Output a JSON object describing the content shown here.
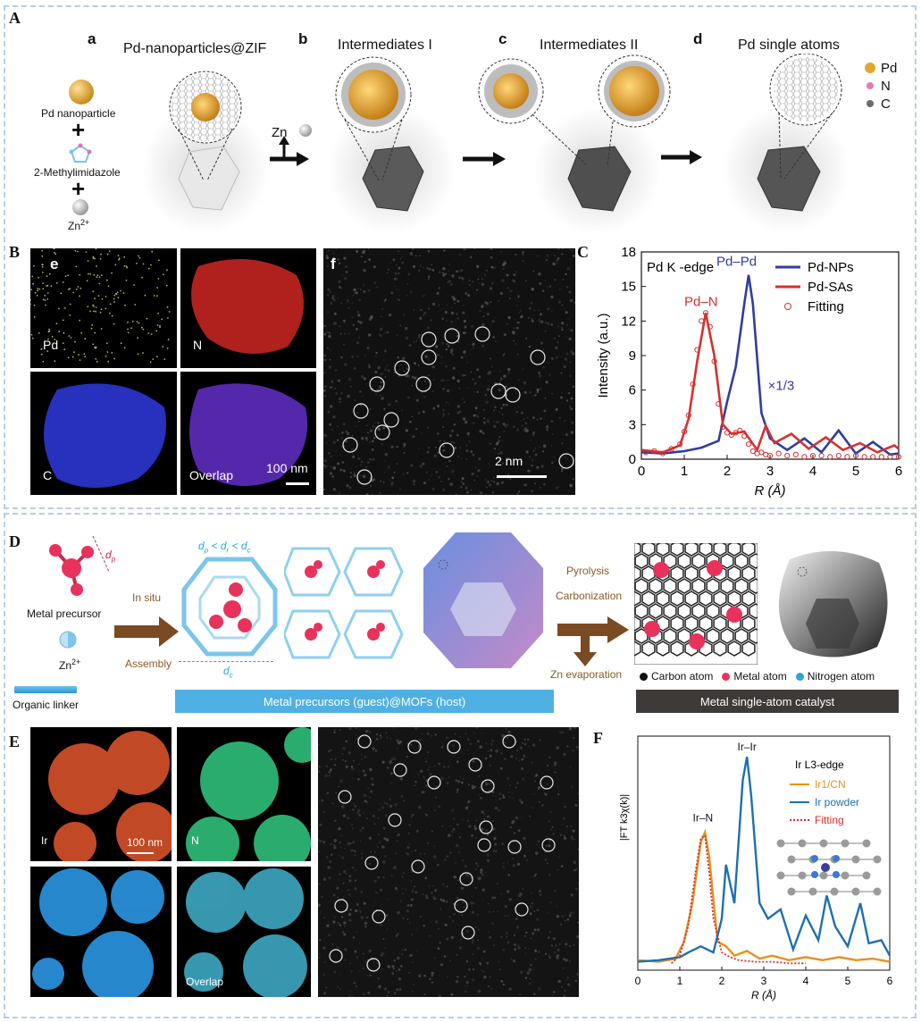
{
  "panelA": {
    "letter": "A",
    "stages": [
      {
        "letter": "a",
        "title": "Pd-nanoparticles@ZIF"
      },
      {
        "letter": "b",
        "title": "Intermediates I"
      },
      {
        "letter": "c",
        "title": "Intermediates II"
      },
      {
        "letter": "d",
        "title": "Pd single atoms"
      }
    ],
    "reagents": {
      "pd_np": "Pd nanoparticle",
      "plus1": "+",
      "linker": "2-Methylimidazole",
      "plus2": "+",
      "zn": "Zn",
      "zn_sup": "2+"
    },
    "zn_release": "Zn",
    "legend": [
      {
        "label": "Pd",
        "color": "#e0a830"
      },
      {
        "label": "N",
        "color": "#e27bb4"
      },
      {
        "label": "C",
        "color": "#6b6b6b"
      }
    ]
  },
  "panelB": {
    "letter": "B",
    "sub_e": "e",
    "maps": [
      {
        "label": "Pd",
        "color": "#d7e06a"
      },
      {
        "label": "N",
        "color": "#d22a2a"
      },
      {
        "label": "C",
        "color": "#2f3ad6"
      },
      {
        "label": "Overlap",
        "color": "#6a2fb8"
      }
    ],
    "scale": "100 nm",
    "sub_f": "f",
    "haadf_scale": "2 nm"
  },
  "panelC": {
    "letter": "C",
    "chart_data": {
      "type": "line",
      "title": "Pd K -edge",
      "xlabel": "R (Å)",
      "ylabel": "Intensity (a.u.)",
      "xlim": [
        0,
        6
      ],
      "ylim": [
        0,
        18
      ],
      "xticks": [
        0,
        1,
        2,
        3,
        4,
        5,
        6
      ],
      "yticks": [
        0,
        3,
        6,
        9,
        12,
        15,
        18
      ],
      "legend_position": "top-right",
      "series": [
        {
          "name": "Pd-NPs",
          "color": "#2f3e9e",
          "style": "solid",
          "x": [
            0,
            0.5,
            1.0,
            1.4,
            1.8,
            2.0,
            2.2,
            2.4,
            2.5,
            2.6,
            2.8,
            3.0,
            3.4,
            3.8,
            4.2,
            4.6,
            5.0,
            5.4,
            5.8,
            6.0
          ],
          "y": [
            0.6,
            0.5,
            0.7,
            1.0,
            1.6,
            5.0,
            8.0,
            13.5,
            16.0,
            13.5,
            4.0,
            1.8,
            0.8,
            1.8,
            0.6,
            2.5,
            0.5,
            1.5,
            0.4,
            0.5
          ]
        },
        {
          "name": "Pd-SAs",
          "color": "#d63030",
          "style": "solid",
          "x": [
            0,
            0.5,
            0.9,
            1.1,
            1.3,
            1.5,
            1.7,
            1.9,
            2.1,
            2.4,
            2.7,
            2.9,
            3.1,
            3.5,
            3.9,
            4.3,
            4.7,
            5.1,
            5.5,
            5.9,
            6.0
          ],
          "y": [
            0.8,
            0.6,
            1.2,
            3.5,
            8.5,
            12.7,
            9.0,
            3.0,
            2.2,
            2.4,
            0.8,
            2.9,
            1.4,
            2.2,
            0.9,
            1.9,
            0.8,
            1.4,
            0.6,
            1.2,
            0.9
          ]
        },
        {
          "name": "Fitting",
          "color": "#d63030",
          "style": "open-circles",
          "x": [
            0.1,
            0.3,
            0.5,
            0.7,
            0.9,
            1.0,
            1.1,
            1.2,
            1.3,
            1.4,
            1.5,
            1.6,
            1.7,
            1.8,
            1.9,
            2.0,
            2.1,
            2.2,
            2.3,
            2.4,
            2.5,
            2.6,
            2.7,
            2.8,
            2.9,
            3.0,
            3.2,
            3.4,
            3.6,
            3.8,
            4.0,
            4.2,
            4.4,
            4.6,
            4.8,
            5.0,
            5.2,
            5.4,
            5.6,
            5.8,
            6.0
          ],
          "y": [
            0.6,
            0.7,
            0.5,
            0.9,
            1.3,
            2.4,
            3.8,
            6.5,
            9.5,
            12.0,
            12.7,
            11.5,
            8.5,
            4.8,
            2.8,
            2.3,
            2.1,
            2.3,
            2.5,
            2.0,
            1.3,
            0.7,
            0.5,
            0.6,
            0.4,
            0.3,
            0.5,
            0.3,
            0.4,
            0.2,
            0.3,
            0.3,
            0.2,
            0.3,
            0.2,
            0.3,
            0.2,
            0.2,
            0.2,
            0.2,
            0.2
          ]
        }
      ],
      "annotations": [
        {
          "text": "Pd–Pd",
          "color": "#2f3e9e"
        },
        {
          "text": "Pd–N",
          "color": "#d63030"
        },
        {
          "text": "×1/3",
          "color": "#2f3e9e"
        }
      ]
    }
  },
  "panelD": {
    "letter": "D",
    "metal_precursor": "Metal precursor",
    "dp": "d",
    "zn": "Zn",
    "zn_sup": "2+",
    "organic_linker": "Organic linker",
    "in_situ": "In situ",
    "assembly": "Assembly",
    "relation": "d",
    "dc_bottom": "d",
    "pyrolysis": "Pyrolysis",
    "carbonization": "Carbonization",
    "zn_evap": "Zn evaporation",
    "legend": [
      {
        "label": "Carbon atom",
        "color": "#111111"
      },
      {
        "label": "Metal atom",
        "color": "#e8325c"
      },
      {
        "label": "Nitrogen atom",
        "color": "#2aa7d8"
      }
    ],
    "host_bar": "Metal precursors (guest)@MOFs (host)",
    "product_bar": "Metal single-atom catalyst"
  },
  "panelE": {
    "letter": "E",
    "maps": [
      {
        "label": "Ir",
        "color": "#e2562a"
      },
      {
        "label": "N",
        "color": "#2fbf7a"
      },
      {
        "label": "",
        "color": "#2a8fd8"
      },
      {
        "label": "Overlap",
        "color": "#3aa0b8"
      }
    ],
    "scale": "100 nm"
  },
  "panelF": {
    "letter": "F",
    "chart_data": {
      "type": "line",
      "title": "Ir L3-edge",
      "xlabel": "R (Å)",
      "ylabel": "|FT k3χ(k)|",
      "xlim": [
        0,
        6
      ],
      "xticks": [
        0,
        1,
        2,
        3,
        4,
        5,
        6
      ],
      "legend_position": "top-right",
      "series": [
        {
          "name": "Ir1/CN",
          "color": "#e8901e",
          "style": "solid",
          "x": [
            0,
            0.5,
            0.9,
            1.1,
            1.3,
            1.5,
            1.6,
            1.7,
            1.9,
            2.1,
            2.3,
            2.6,
            2.9,
            3.2,
            3.6,
            4.0,
            4.4,
            4.8,
            5.2,
            5.6,
            6.0
          ],
          "y": [
            0.3,
            0.2,
            0.4,
            1.5,
            4.0,
            8.0,
            8.6,
            7.0,
            1.5,
            1.2,
            0.6,
            0.9,
            0.4,
            0.6,
            0.3,
            0.5,
            0.3,
            0.5,
            0.3,
            0.4,
            0.2
          ]
        },
        {
          "name": "Ir powder",
          "color": "#1f6fb0",
          "style": "solid",
          "x": [
            0,
            0.5,
            1.0,
            1.2,
            1.5,
            1.8,
            2.0,
            2.1,
            2.3,
            2.5,
            2.6,
            2.7,
            2.9,
            3.1,
            3.4,
            3.7,
            4.0,
            4.3,
            4.5,
            4.7,
            5.0,
            5.3,
            5.5,
            5.8,
            6.0
          ],
          "y": [
            0.2,
            0.3,
            0.5,
            0.8,
            1.2,
            0.8,
            3.0,
            6.5,
            4.0,
            12.0,
            13.5,
            11.0,
            4.0,
            3.0,
            3.6,
            1.0,
            3.2,
            1.6,
            4.5,
            2.5,
            1.2,
            4.0,
            1.4,
            1.6,
            0.6
          ]
        },
        {
          "name": "Fitting",
          "color": "#d63030",
          "style": "dotted",
          "x": [
            0.8,
            1.0,
            1.2,
            1.4,
            1.5,
            1.6,
            1.7,
            1.8,
            2.0,
            2.2,
            2.4,
            2.8,
            3.2,
            3.6,
            4.0
          ],
          "y": [
            0.1,
            0.6,
            2.5,
            6.5,
            8.2,
            8.4,
            6.0,
            3.0,
            0.8,
            0.5,
            0.3,
            0.2,
            0.2,
            0.1,
            0.1
          ]
        }
      ],
      "annotations": [
        {
          "text": "Ir–Ir",
          "color": "#111111"
        },
        {
          "text": "Ir–N",
          "color": "#111111"
        }
      ]
    }
  }
}
